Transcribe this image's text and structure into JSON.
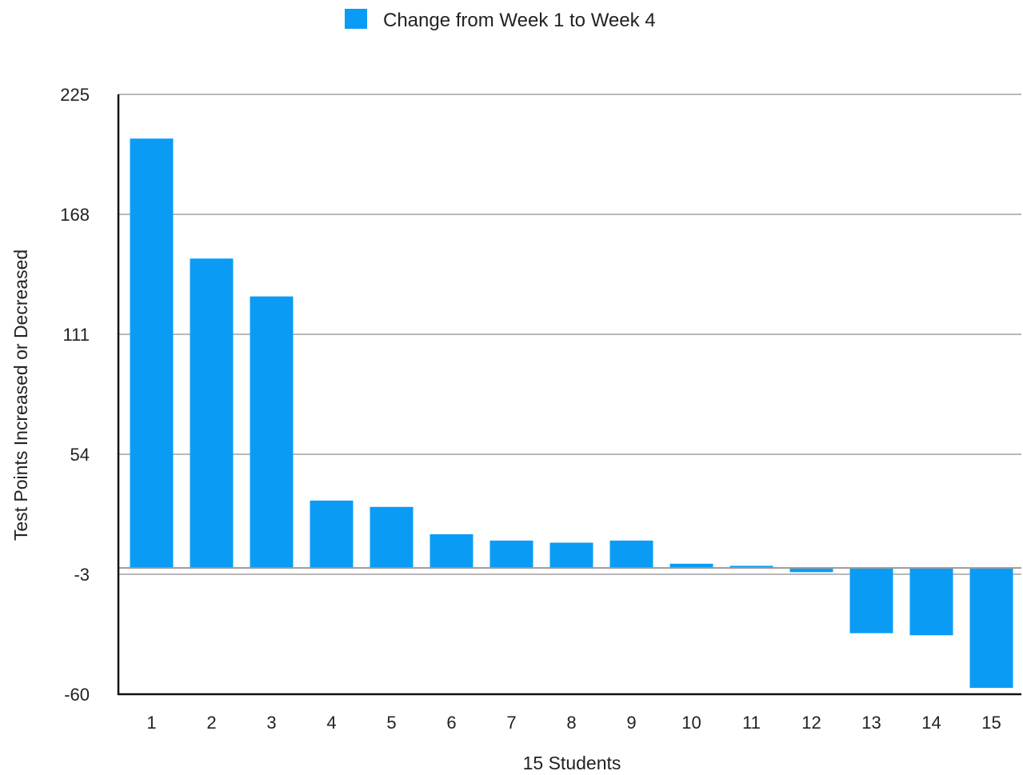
{
  "chart_data": {
    "type": "bar",
    "title": "",
    "xlabel": "15 Students",
    "ylabel": "Test Points Increased or Decreased",
    "categories": [
      "1",
      "2",
      "3",
      "4",
      "5",
      "6",
      "7",
      "8",
      "9",
      "10",
      "11",
      "12",
      "13",
      "14",
      "15"
    ],
    "series": [
      {
        "name": "Change from Week 1 to Week 4",
        "color": "#0a9cf5",
        "values": [
          204,
          147,
          129,
          32,
          29,
          16,
          13,
          12,
          13,
          2,
          1,
          -2,
          -31,
          -32,
          -57
        ]
      }
    ],
    "ylim": [
      -60,
      225
    ],
    "yticks": [
      -60,
      -3,
      54,
      111,
      168,
      225
    ],
    "grid": true,
    "legend": "top-center"
  }
}
